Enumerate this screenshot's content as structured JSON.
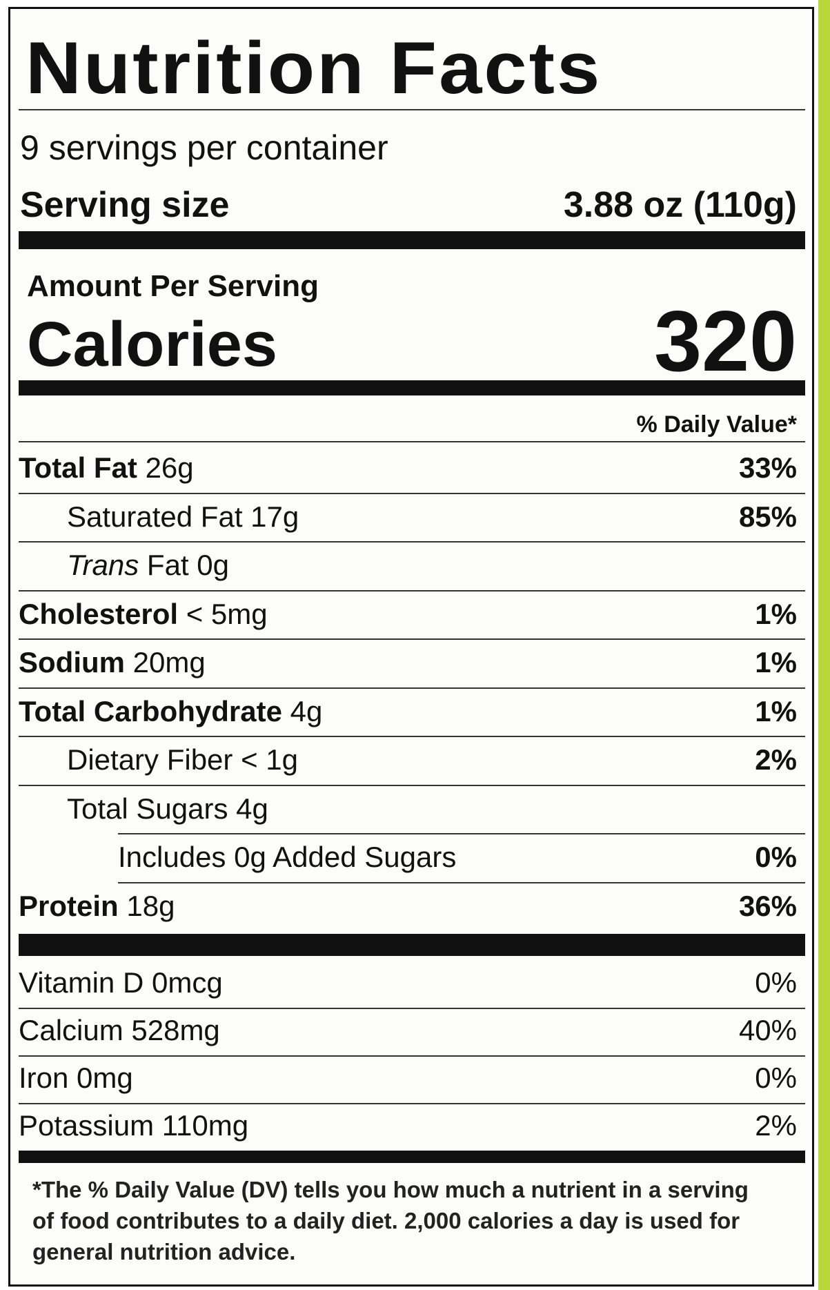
{
  "title": "Nutrition Facts",
  "servings": "9 servings per container",
  "serving_size": {
    "label": "Serving size",
    "value": "3.88 oz (110g)"
  },
  "amount_per_serving": "Amount Per Serving",
  "calories": {
    "label": "Calories",
    "value": "320"
  },
  "dv_header": "% Daily Value*",
  "nutrients": [
    {
      "name": "Total Fat",
      "amount": "26g",
      "dv": "33%"
    },
    {
      "name": "Saturated Fat",
      "amount": "17g",
      "dv": "85%"
    },
    {
      "name_italic": "Trans",
      "name": "Fat",
      "amount": "0g"
    },
    {
      "name": "Cholesterol",
      "amount": "< 5mg",
      "dv": "1%"
    },
    {
      "name": "Sodium",
      "amount": "20mg",
      "dv": "1%"
    },
    {
      "name": "Total Carbohydrate",
      "amount": "4g",
      "dv": "1%"
    },
    {
      "name": "Dietary Fiber",
      "amount": "< 1g",
      "dv": "2%"
    },
    {
      "name": "Total Sugars",
      "amount": "4g"
    },
    {
      "name": "Includes 0g Added Sugars",
      "dv": "0%"
    },
    {
      "name": "Protein",
      "amount": "18g",
      "dv": "36%"
    }
  ],
  "vitamins": [
    {
      "name": "Vitamin D",
      "amount": "0mcg",
      "dv": "0%"
    },
    {
      "name": "Calcium",
      "amount": "528mg",
      "dv": "40%"
    },
    {
      "name": "Iron",
      "amount": "0mg",
      "dv": "0%"
    },
    {
      "name": "Potassium",
      "amount": "110mg",
      "dv": "2%"
    }
  ],
  "footnote": "*The % Daily Value (DV) tells you how much a nutrient in a serving of food contributes to a daily diet. 2,000 calories a day is used for general nutrition advice."
}
